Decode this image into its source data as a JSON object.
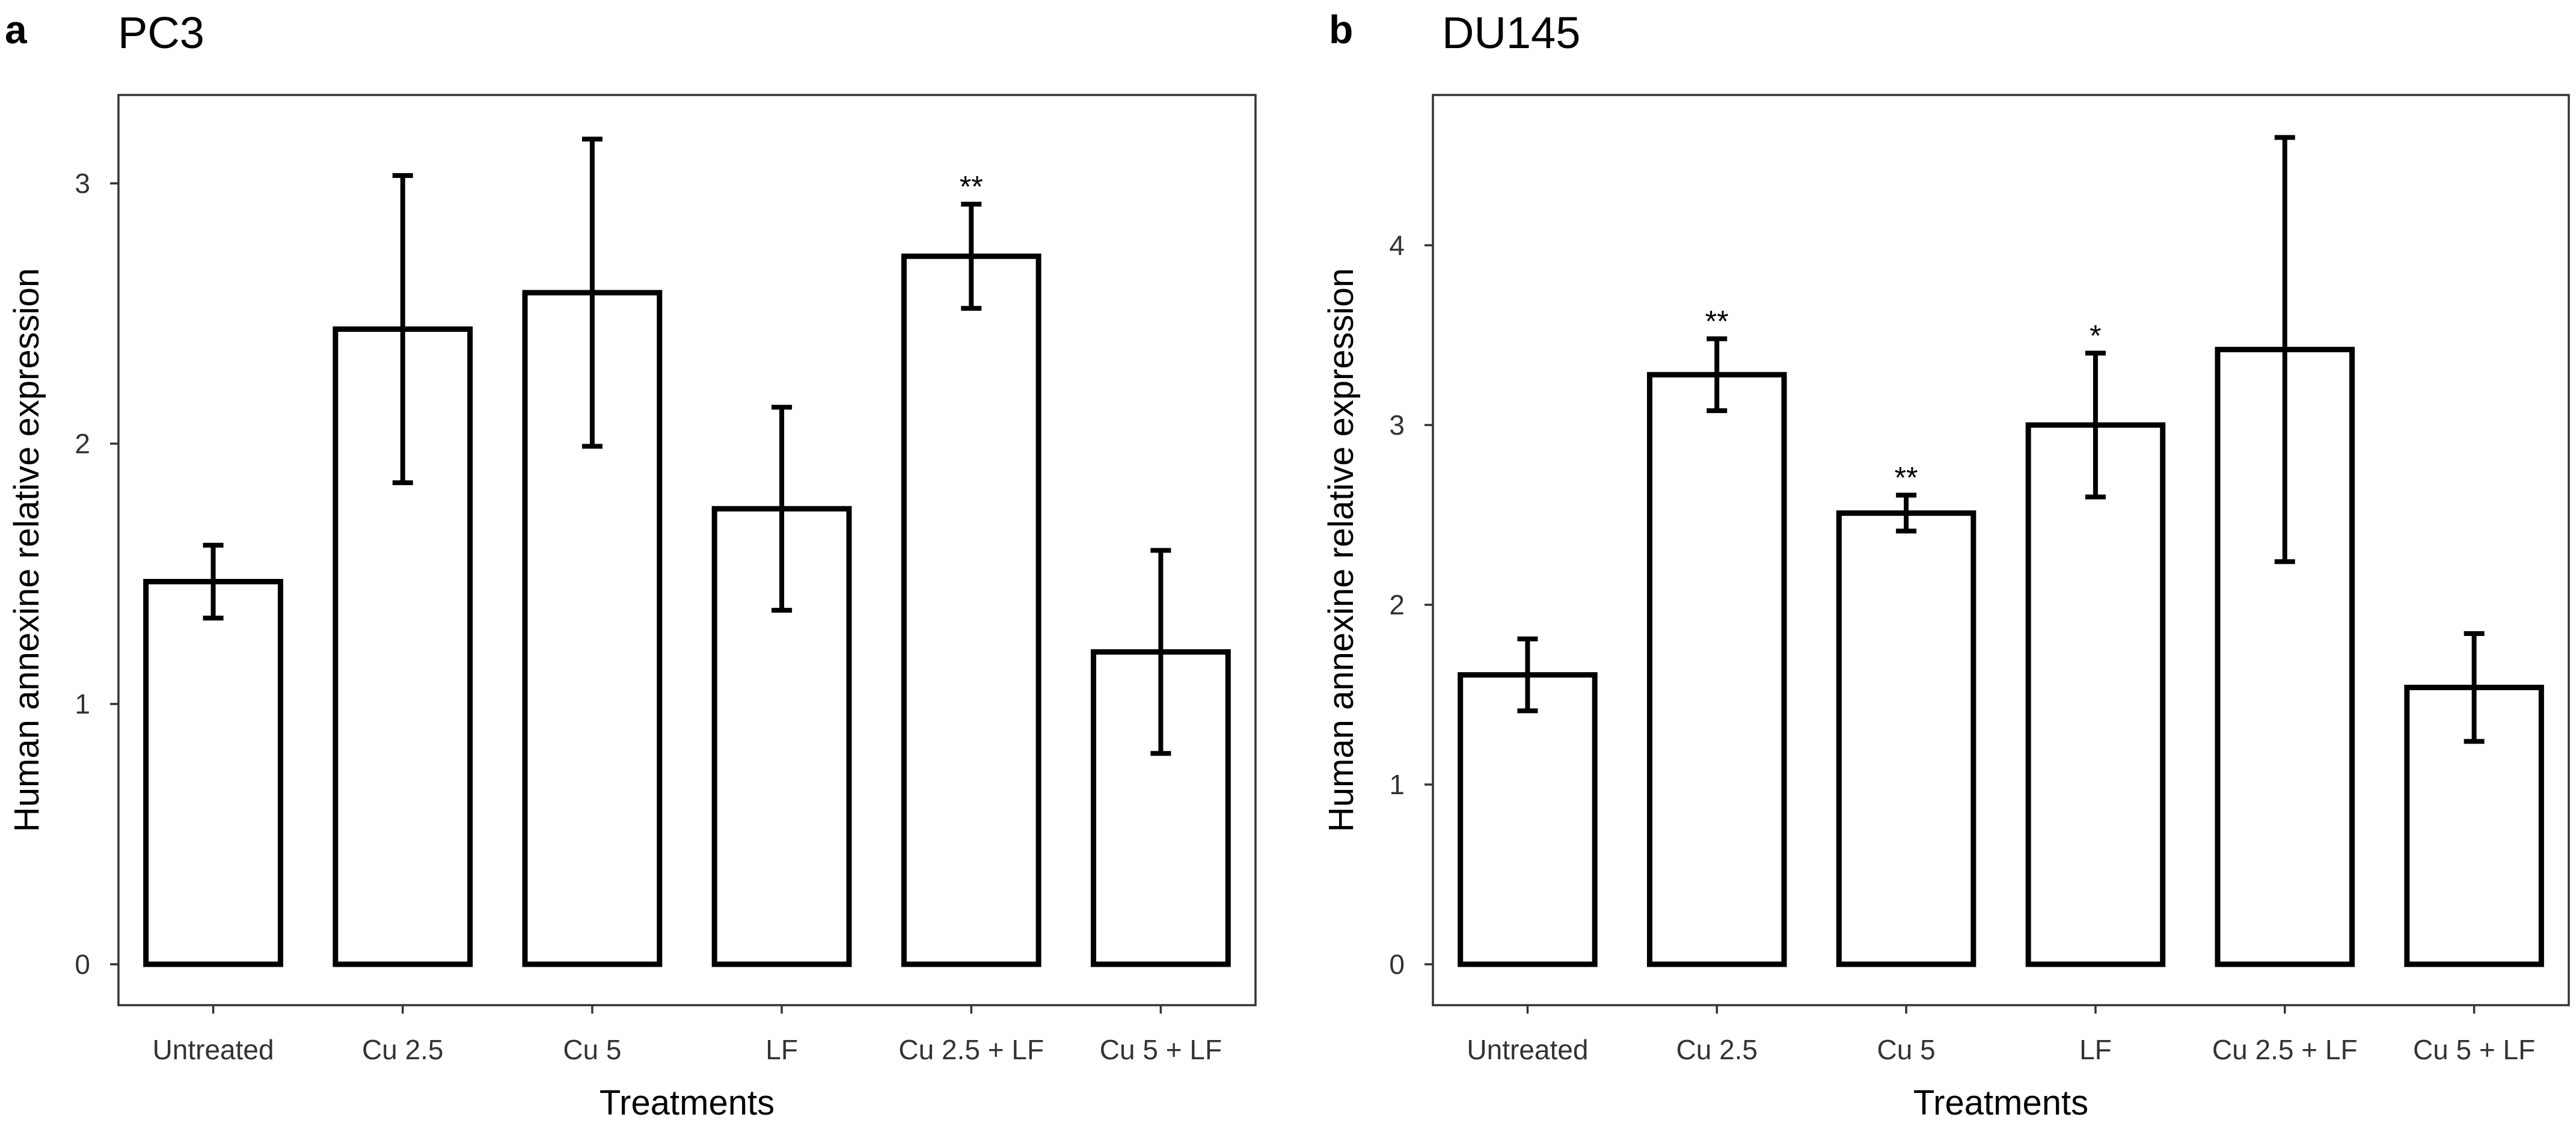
{
  "chart_data": [
    {
      "panel": "a",
      "type": "bar",
      "title": "PC3",
      "xlabel": "Treatments",
      "ylabel": "Human annexine relative expression",
      "ylim": [
        0,
        3.3
      ],
      "yticks": [
        0,
        1,
        2,
        3
      ],
      "grid": false,
      "categories": [
        "Untreated",
        "Cu 2.5",
        "Cu 5",
        "LF",
        "Cu 2.5 + LF",
        "Cu 5 + LF"
      ],
      "values": [
        1.47,
        2.44,
        2.58,
        1.75,
        2.72,
        1.2
      ],
      "error": [
        0.14,
        0.59,
        0.59,
        0.39,
        0.2,
        0.39
      ],
      "annotations": [
        "",
        "",
        "",
        "",
        "**",
        ""
      ]
    },
    {
      "panel": "b",
      "type": "bar",
      "title": "DU145",
      "xlabel": "Treatments",
      "ylabel": "Human annexine relative expression",
      "ylim": [
        0,
        4.85
      ],
      "yticks": [
        0,
        1,
        2,
        3,
        4
      ],
      "grid": false,
      "categories": [
        "Untreated",
        "Cu 2.5",
        "Cu 5",
        "LF",
        "Cu 2.5 + LF",
        "Cu 5 + LF"
      ],
      "values": [
        1.61,
        3.28,
        2.51,
        3.0,
        3.42,
        1.54
      ],
      "error": [
        0.2,
        0.2,
        0.1,
        0.4,
        1.18,
        0.3
      ],
      "annotations": [
        "",
        "**",
        "**",
        "*",
        "",
        ""
      ]
    }
  ]
}
